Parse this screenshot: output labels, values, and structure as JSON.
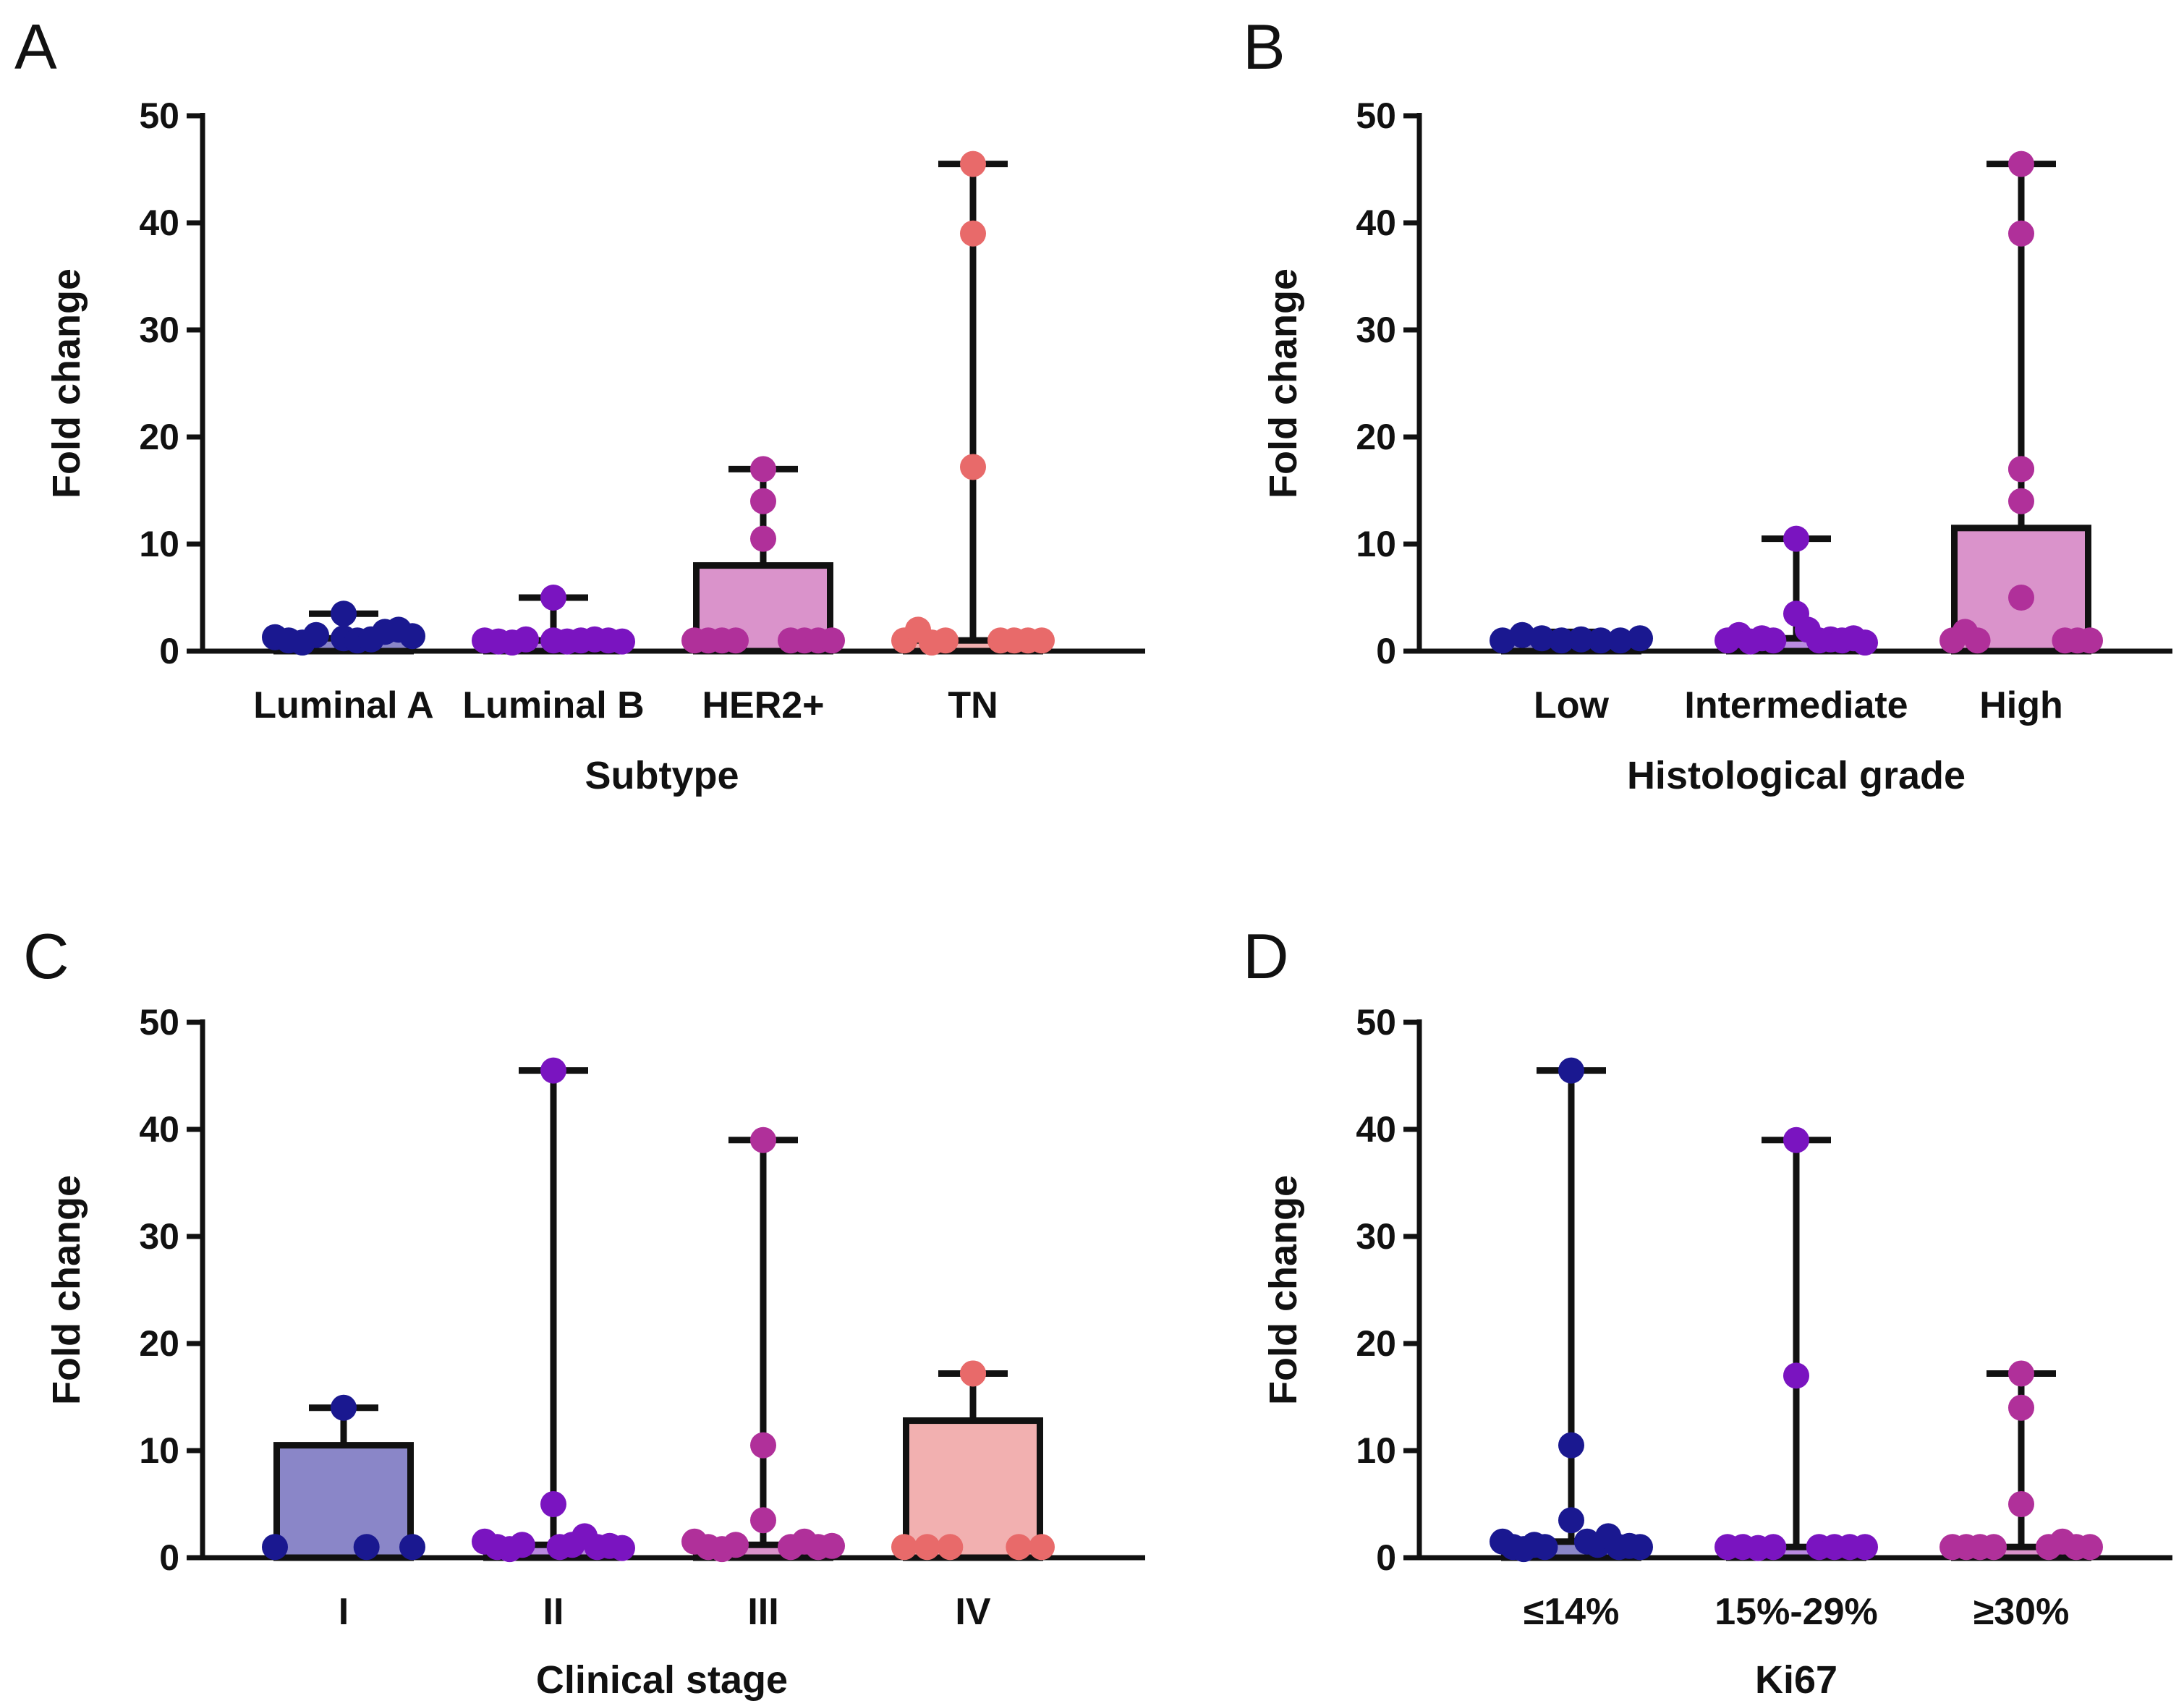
{
  "figure_colors": {
    "axis": "#111111",
    "background": "#ffffff"
  },
  "chart_data": [
    {
      "panel": "A",
      "type": "bar",
      "xlabel": "Subtype",
      "ylabel": "Fold change",
      "ylim": [
        0,
        50
      ],
      "yticks": [
        0,
        10,
        20,
        30,
        40,
        50
      ],
      "ytick_labels": [
        "0",
        "10",
        "20",
        "30",
        "40",
        "50"
      ],
      "categories": [
        "Luminal A",
        "Luminal B",
        "HER2+",
        "TN"
      ],
      "colors": [
        "#1a1890",
        "#7a14c0",
        "#b0309a",
        "#e86a6a"
      ],
      "bar_fill_colors": [
        "#8a86c8",
        "#b98ae0",
        "#da93cb",
        "#f2b0b0"
      ],
      "bar_values": [
        1.2,
        1.0,
        8.0,
        1.0
      ],
      "whisker_max": [
        3.5,
        5.0,
        17.0,
        45.5
      ],
      "points": [
        [
          1.3,
          1.0,
          0.8,
          1.5,
          3.5,
          1.2,
          1.0,
          1.1,
          1.8,
          2.0,
          1.4
        ],
        [
          1.0,
          0.9,
          0.8,
          1.1,
          5.0,
          1.0,
          0.9,
          1.0,
          1.1,
          1.0,
          0.9
        ],
        [
          1.0,
          1.0,
          1.0,
          1.0,
          10.5,
          14.0,
          17.0,
          1.0,
          1.0,
          1.0,
          1.0
        ],
        [
          1.0,
          2.0,
          0.8,
          1.0,
          17.2,
          39.0,
          45.5,
          1.0,
          1.0,
          1.0,
          1.0
        ]
      ]
    },
    {
      "panel": "B",
      "type": "bar",
      "xlabel": "Histological grade",
      "ylabel": "Fold change",
      "ylim": [
        0,
        50
      ],
      "yticks": [
        0,
        10,
        20,
        30,
        40,
        50
      ],
      "ytick_labels": [
        "0",
        "10",
        "20",
        "30",
        "40",
        "50"
      ],
      "categories": [
        "Low",
        "Intermediate",
        "High"
      ],
      "colors": [
        "#1a1890",
        "#7a14c0",
        "#b0309a"
      ],
      "bar_fill_colors": [
        "#8a86c8",
        "#b98ae0",
        "#da93cb"
      ],
      "bar_values": [
        1.2,
        1.2,
        11.5
      ],
      "whisker_max": [
        1.8,
        10.5,
        45.5
      ],
      "points": [
        [
          1.0,
          1.5,
          1.2,
          1.0,
          1.1,
          1.0,
          1.0,
          1.2
        ],
        [
          1.0,
          1.5,
          0.9,
          1.2,
          1.0,
          3.5,
          10.5,
          2.0,
          1.0,
          1.1,
          1.0,
          1.2,
          0.8
        ],
        [
          1.0,
          1.8,
          1.0,
          5.0,
          14.0,
          17.0,
          17.0,
          39.0,
          45.5,
          1.0,
          1.0,
          1.0
        ]
      ]
    },
    {
      "panel": "C",
      "type": "bar",
      "xlabel": "Clinical stage",
      "ylabel": "Fold change",
      "ylim": [
        0,
        50
      ],
      "yticks": [
        0,
        10,
        20,
        30,
        40,
        50
      ],
      "ytick_labels": [
        "0",
        "10",
        "20",
        "30",
        "40",
        "50"
      ],
      "categories": [
        "I",
        "II",
        "III",
        "IV"
      ],
      "colors": [
        "#1a1890",
        "#7a14c0",
        "#b0309a",
        "#e86a6a"
      ],
      "bar_fill_colors": [
        "#8a86c8",
        "#b98ae0",
        "#da93cb",
        "#f2b0b0"
      ],
      "bar_values": [
        10.5,
        1.2,
        1.2,
        12.8
      ],
      "whisker_max": [
        14.0,
        45.5,
        39.0,
        17.2
      ],
      "points": [
        [
          1.0,
          14.0,
          1.0,
          1.0
        ],
        [
          1.5,
          1.0,
          0.8,
          1.2,
          5.0,
          45.5,
          1.0,
          1.2,
          2.0,
          1.0,
          1.1,
          0.9
        ],
        [
          1.5,
          1.0,
          0.8,
          1.2,
          3.5,
          10.5,
          39.0,
          1.0,
          1.5,
          1.0,
          1.1
        ],
        [
          1.0,
          1.0,
          1.0,
          17.2,
          17.2,
          1.0,
          1.0
        ]
      ]
    },
    {
      "panel": "D",
      "type": "bar",
      "xlabel": "Ki67",
      "ylabel": "Fold change",
      "ylim": [
        0,
        50
      ],
      "yticks": [
        0,
        10,
        20,
        30,
        40,
        50
      ],
      "ytick_labels": [
        "0",
        "10",
        "20",
        "30",
        "40",
        "50"
      ],
      "categories": [
        "≤14%",
        "15%-29%",
        "≥30%"
      ],
      "colors": [
        "#1a1890",
        "#7a14c0",
        "#b0309a"
      ],
      "bar_fill_colors": [
        "#8a86c8",
        "#b98ae0",
        "#da93cb"
      ],
      "bar_values": [
        1.5,
        1.0,
        1.0
      ],
      "whisker_max": [
        45.5,
        39.0,
        17.2
      ],
      "points": [
        [
          1.5,
          1.0,
          0.8,
          1.2,
          1.0,
          3.5,
          10.5,
          45.5,
          1.5,
          1.2,
          2.0,
          1.0,
          1.1,
          1.0
        ],
        [
          1.0,
          1.0,
          0.9,
          1.0,
          17.0,
          39.0,
          1.0,
          1.0,
          1.0,
          1.0
        ],
        [
          1.0,
          1.0,
          1.0,
          1.0,
          5.0,
          14.0,
          17.2,
          1.0,
          1.5,
          1.0,
          1.0
        ]
      ]
    }
  ]
}
